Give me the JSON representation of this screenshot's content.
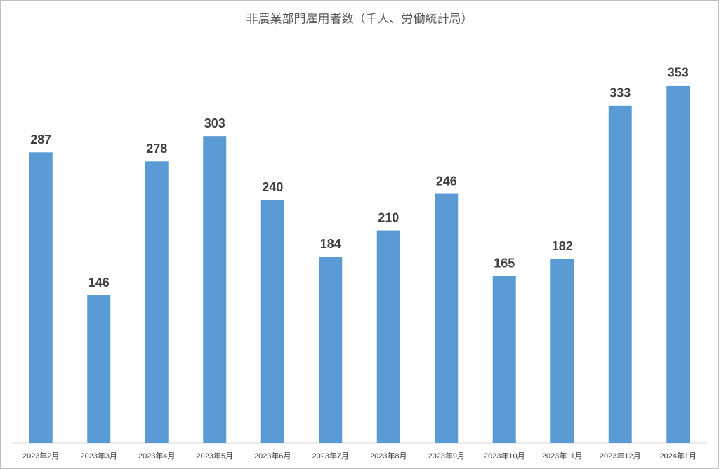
{
  "chart_data": {
    "type": "bar",
    "title": "非農業部門雇用者数（千人、労働統計局）",
    "categories": [
      "2023年2月",
      "2023年3月",
      "2023年4月",
      "2023年5月",
      "2023年6月",
      "2023年7月",
      "2023年8月",
      "2023年9月",
      "2023年10月",
      "2023年11月",
      "2023年12月",
      "2024年1月"
    ],
    "values": [
      287,
      146,
      278,
      303,
      240,
      184,
      210,
      246,
      165,
      182,
      333,
      353
    ],
    "color": "#5b9bd5",
    "ylim": [
      0,
      400
    ]
  }
}
